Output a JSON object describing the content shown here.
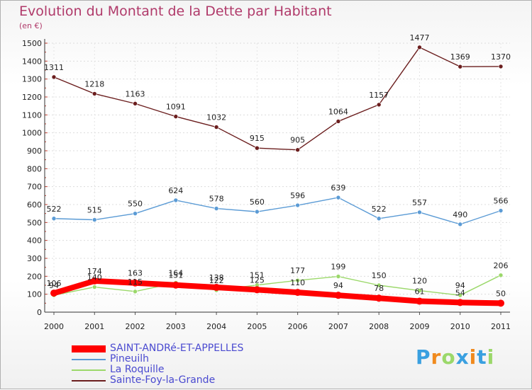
{
  "chart_data": {
    "type": "line",
    "title": "Evolution du Montant de la Dette par Habitant",
    "subtitle": "(en €)",
    "xlabel": "",
    "ylabel": "",
    "ylim": [
      0,
      1500
    ],
    "yticks": [
      0,
      100,
      200,
      300,
      400,
      500,
      600,
      700,
      800,
      900,
      1000,
      1100,
      1200,
      1300,
      1400,
      1500
    ],
    "categories": [
      "2000",
      "2001",
      "2002",
      "2003",
      "2004",
      "2005",
      "2006",
      "2007",
      "2008",
      "2009",
      "2010",
      "2011"
    ],
    "grid": true,
    "legend_position": "bottom-left",
    "series": [
      {
        "name": "Sainte-Foy-la-Grande",
        "color": "#6b1e1e",
        "values": [
          1311,
          1218,
          1163,
          1091,
          1032,
          915,
          905,
          1064,
          1157,
          1477,
          1369,
          1370
        ]
      },
      {
        "name": "Pineuilh",
        "color": "#5b9bd5",
        "values": [
          522,
          515,
          550,
          624,
          578,
          560,
          596,
          639,
          522,
          557,
          490,
          566
        ]
      },
      {
        "name": "La Roquille",
        "color": "#9bd86a",
        "values": [
          94,
          140,
          115,
          164,
          122,
          151,
          177,
          199,
          150,
          120,
          94,
          206
        ]
      },
      {
        "name": "SAINT-ANDRé-ET-APPELLES",
        "color": "#ff0000",
        "values": [
          106,
          174,
          163,
          151,
          138,
          125,
          110,
          94,
          78,
          61,
          54,
          50
        ]
      }
    ],
    "legend_order": [
      "SAINT-ANDRé-ET-APPELLES",
      "Pineuilh",
      "La Roquille",
      "Sainte-Foy-la-Grande"
    ]
  },
  "logo": {
    "text": "Proxiti",
    "colors": [
      "#3aa0e0",
      "#f08a1e",
      "#9bd86a",
      "#3aa0e0",
      "#f08a1e",
      "#3aa0e0",
      "#9bd86a"
    ]
  }
}
